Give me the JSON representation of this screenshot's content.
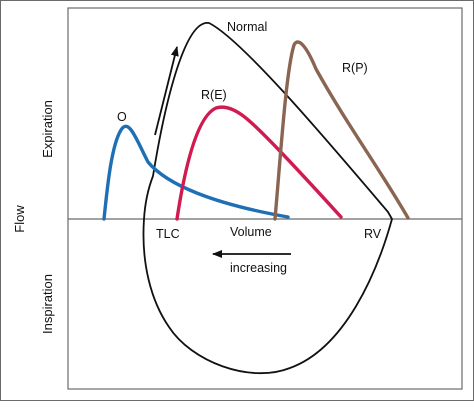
{
  "diagram": {
    "labels": {
      "flow": "Flow",
      "expiration": "Expiration",
      "inspiration": "Inspiration",
      "tlc": "TLC",
      "volume": "Volume",
      "rv": "RV",
      "increasing": "increasing",
      "normal": "Normal",
      "obstructive": "O",
      "restrictive_e": "R(E)",
      "restrictive_p": "R(P)"
    },
    "colors": {
      "normal": "#111111",
      "obstructive": "#1f6fb5",
      "restrictive_e": "#d11a4f",
      "restrictive_p": "#8a6552",
      "frame": "#6a6a6a",
      "axis": "#6a6a6a"
    }
  }
}
